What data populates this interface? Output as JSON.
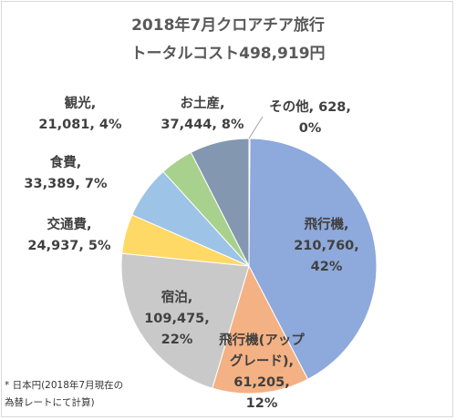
{
  "chart_data": {
    "type": "pie",
    "title_lines": [
      "2018年7月クロアチア旅行",
      "トータルコスト498,919円"
    ],
    "footnote_lines": [
      "* 日本円(2018年7月現在の",
      "為替レートにて計算)"
    ],
    "slices": [
      {
        "name": "その他",
        "value": 628,
        "percent": "0%",
        "color": "#c0504d",
        "label_lines": [
          "その他, 628,",
          "0%"
        ]
      },
      {
        "name": "飛行機",
        "value": 210760,
        "percent": "42%",
        "color": "#8ea9db",
        "label_lines": [
          "飛行機,",
          "210,760,",
          "42%"
        ]
      },
      {
        "name": "飛行機(アップグレード)",
        "value": 61205,
        "percent": "12%",
        "color": "#f4b183",
        "label_lines": [
          "飛行機(アップ",
          "グレード),",
          "61,205,",
          "12%"
        ]
      },
      {
        "name": "宿泊",
        "value": 109475,
        "percent": "22%",
        "color": "#c9c9c9",
        "label_lines": [
          "宿泊,",
          "109,475,",
          "22%"
        ]
      },
      {
        "name": "交通費",
        "value": 24937,
        "percent": "5%",
        "color": "#ffd966",
        "label_lines": [
          "交通費,",
          "24,937, 5%"
        ]
      },
      {
        "name": "食費",
        "value": 33389,
        "percent": "7%",
        "color": "#9dc3e6",
        "label_lines": [
          "食費,",
          "33,389, 7%"
        ]
      },
      {
        "name": "観光",
        "value": 21081,
        "percent": "4%",
        "color": "#a9d18e",
        "label_lines": [
          "観光,",
          "21,081, 4%"
        ]
      },
      {
        "name": "お土産",
        "value": 37444,
        "percent": "8%",
        "color": "#8497b0",
        "label_lines": [
          "お土産,",
          "37,444, 8%"
        ]
      }
    ]
  }
}
